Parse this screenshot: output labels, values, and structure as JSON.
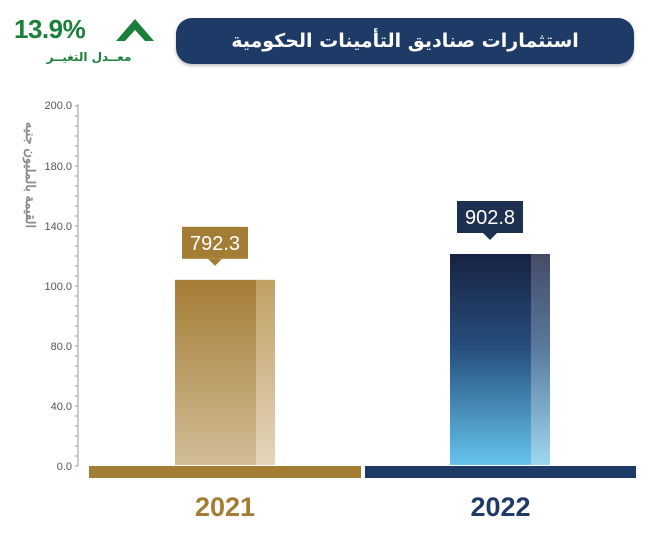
{
  "title": "استثمارات صناديق التأمينات الحكومية",
  "change": {
    "value": "13.9%",
    "label": "معــدل التغيــر",
    "direction": "up",
    "color": "#1b7f3a"
  },
  "chart_data": {
    "type": "bar",
    "ylabel": "القيمة بالمليون جنيه",
    "ylim": [
      0,
      200
    ],
    "y_ticks": [
      "0.0",
      "40.0",
      "80.0",
      "100.0",
      "140.0",
      "180.0",
      "200.0"
    ],
    "grid": false,
    "categories": [
      "2021",
      "2022"
    ],
    "values": [
      792.3,
      902.8
    ],
    "value_labels": [
      "792.3",
      "902.8"
    ],
    "colors": [
      "#a47d35",
      "#1e3a67"
    ]
  }
}
